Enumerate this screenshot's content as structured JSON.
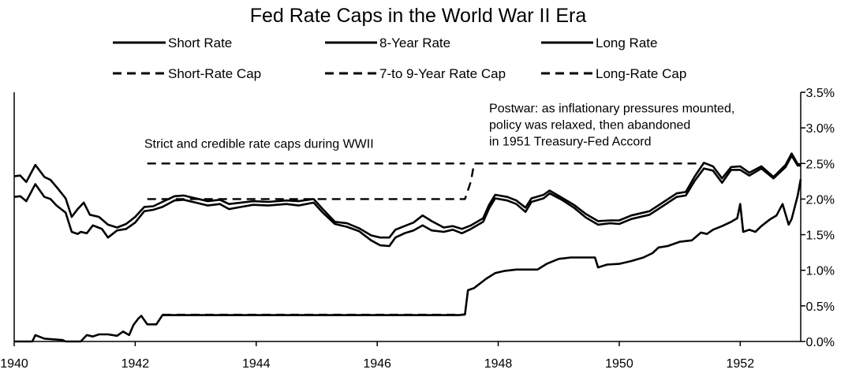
{
  "chart_data": {
    "type": "line",
    "title": "Fed Rate Caps in the World War II Era",
    "xlabel": "",
    "ylabel": "",
    "xlim": [
      1940,
      1953
    ],
    "ylim": [
      0,
      0.035
    ],
    "x_ticks": [
      1940,
      1942,
      1944,
      1946,
      1948,
      1950,
      1952
    ],
    "x_tick_labels": [
      "1940",
      "1942",
      "1944",
      "1946",
      "1948",
      "1950",
      "1952"
    ],
    "y_ticks": [
      0,
      0.005,
      0.01,
      0.015,
      0.02,
      0.025,
      0.03,
      0.035
    ],
    "y_tick_labels": [
      "0.0%",
      "0.5%",
      "1.0%",
      "1.5%",
      "2.0%",
      "2.5%",
      "3.0%",
      "3.5%"
    ],
    "y_axis_side": "right",
    "grid": false,
    "legend_position": "top",
    "annotations": [
      {
        "id": "wwii",
        "lines": [
          "Strict and credible rate caps during WWII"
        ],
        "x": 1942.15,
        "y": 0.0272
      },
      {
        "id": "postwar",
        "lines": [
          "Postwar: as inflationary pressures mounted,",
          "policy was relaxed, then abandoned",
          "in 1951 Treasury-Fed Accord"
        ],
        "x": 1947.85,
        "y": 0.0322
      }
    ],
    "series": [
      {
        "name": "Short Rate",
        "style": "solid",
        "points": [
          [
            1940.0,
            0.0
          ],
          [
            1940.3,
            0.0
          ],
          [
            1940.35,
            0.0009
          ],
          [
            1940.5,
            0.0004
          ],
          [
            1940.8,
            0.0002
          ],
          [
            1940.85,
            0.0
          ],
          [
            1941.1,
            0.0
          ],
          [
            1941.2,
            0.0009
          ],
          [
            1941.3,
            0.0007
          ],
          [
            1941.4,
            0.001
          ],
          [
            1941.55,
            0.001
          ],
          [
            1941.7,
            0.0008
          ],
          [
            1941.8,
            0.0014
          ],
          [
            1941.9,
            0.0009
          ],
          [
            1941.97,
            0.0023
          ],
          [
            1942.05,
            0.0032
          ],
          [
            1942.1,
            0.0036
          ],
          [
            1942.2,
            0.0024
          ],
          [
            1942.35,
            0.0024
          ],
          [
            1942.45,
            0.0037
          ],
          [
            1947.35,
            0.0037
          ],
          [
            1947.45,
            0.0038
          ],
          [
            1947.5,
            0.0072
          ],
          [
            1947.6,
            0.0075
          ],
          [
            1947.8,
            0.0088
          ],
          [
            1947.95,
            0.0096
          ],
          [
            1948.1,
            0.0099
          ],
          [
            1948.3,
            0.0101
          ],
          [
            1948.65,
            0.0101
          ],
          [
            1948.8,
            0.0109
          ],
          [
            1949.0,
            0.0116
          ],
          [
            1949.2,
            0.0118
          ],
          [
            1949.6,
            0.0118
          ],
          [
            1949.65,
            0.0104
          ],
          [
            1949.8,
            0.0108
          ],
          [
            1950.0,
            0.0109
          ],
          [
            1950.2,
            0.0113
          ],
          [
            1950.4,
            0.0118
          ],
          [
            1950.55,
            0.0124
          ],
          [
            1950.65,
            0.0132
          ],
          [
            1950.8,
            0.0134
          ],
          [
            1951.0,
            0.014
          ],
          [
            1951.2,
            0.0142
          ],
          [
            1951.35,
            0.0153
          ],
          [
            1951.45,
            0.0151
          ],
          [
            1951.55,
            0.0157
          ],
          [
            1951.7,
            0.0162
          ],
          [
            1951.85,
            0.0168
          ],
          [
            1951.95,
            0.0173
          ],
          [
            1952.0,
            0.0193
          ],
          [
            1952.05,
            0.0154
          ],
          [
            1952.15,
            0.0157
          ],
          [
            1952.25,
            0.0154
          ],
          [
            1952.35,
            0.0162
          ],
          [
            1952.5,
            0.0172
          ],
          [
            1952.6,
            0.0177
          ],
          [
            1952.7,
            0.0193
          ],
          [
            1952.8,
            0.0164
          ],
          [
            1952.85,
            0.0172
          ],
          [
            1952.95,
            0.0205
          ],
          [
            1953.0,
            0.0228
          ]
        ]
      },
      {
        "name": "8-Year Rate",
        "style": "solid",
        "points": [
          [
            1940.0,
            0.0203
          ],
          [
            1940.1,
            0.0204
          ],
          [
            1940.2,
            0.0197
          ],
          [
            1940.35,
            0.0221
          ],
          [
            1940.5,
            0.0203
          ],
          [
            1940.6,
            0.02
          ],
          [
            1940.7,
            0.0191
          ],
          [
            1940.85,
            0.0181
          ],
          [
            1940.95,
            0.0154
          ],
          [
            1941.05,
            0.0151
          ],
          [
            1941.1,
            0.0154
          ],
          [
            1941.2,
            0.0152
          ],
          [
            1941.3,
            0.0163
          ],
          [
            1941.45,
            0.0158
          ],
          [
            1941.55,
            0.0146
          ],
          [
            1941.7,
            0.0156
          ],
          [
            1941.85,
            0.0158
          ],
          [
            1942.0,
            0.0167
          ],
          [
            1942.15,
            0.0183
          ],
          [
            1942.3,
            0.0185
          ],
          [
            1942.45,
            0.0189
          ],
          [
            1942.65,
            0.0198
          ],
          [
            1942.8,
            0.0199
          ],
          [
            1943.0,
            0.0195
          ],
          [
            1943.2,
            0.0191
          ],
          [
            1943.4,
            0.0193
          ],
          [
            1943.55,
            0.0186
          ],
          [
            1943.75,
            0.0189
          ],
          [
            1943.95,
            0.0192
          ],
          [
            1944.2,
            0.0191
          ],
          [
            1944.5,
            0.0193
          ],
          [
            1944.7,
            0.0191
          ],
          [
            1944.95,
            0.0195
          ],
          [
            1945.1,
            0.0181
          ],
          [
            1945.3,
            0.0165
          ],
          [
            1945.5,
            0.0161
          ],
          [
            1945.7,
            0.0155
          ],
          [
            1945.9,
            0.0142
          ],
          [
            1946.05,
            0.0135
          ],
          [
            1946.2,
            0.0134
          ],
          [
            1946.3,
            0.0146
          ],
          [
            1946.45,
            0.0152
          ],
          [
            1946.6,
            0.0156
          ],
          [
            1946.75,
            0.0163
          ],
          [
            1946.9,
            0.0156
          ],
          [
            1947.1,
            0.0154
          ],
          [
            1947.25,
            0.0157
          ],
          [
            1947.4,
            0.0152
          ],
          [
            1947.55,
            0.0158
          ],
          [
            1947.75,
            0.0168
          ],
          [
            1947.85,
            0.0187
          ],
          [
            1947.95,
            0.0201
          ],
          [
            1948.15,
            0.0198
          ],
          [
            1948.3,
            0.0193
          ],
          [
            1948.45,
            0.0182
          ],
          [
            1948.55,
            0.0196
          ],
          [
            1948.75,
            0.0201
          ],
          [
            1948.85,
            0.0208
          ],
          [
            1949.05,
            0.0199
          ],
          [
            1949.25,
            0.0188
          ],
          [
            1949.45,
            0.0174
          ],
          [
            1949.65,
            0.0164
          ],
          [
            1949.85,
            0.0166
          ],
          [
            1950.0,
            0.0165
          ],
          [
            1950.2,
            0.0172
          ],
          [
            1950.5,
            0.0178
          ],
          [
            1950.7,
            0.0189
          ],
          [
            1950.95,
            0.0203
          ],
          [
            1951.1,
            0.0205
          ],
          [
            1951.25,
            0.0226
          ],
          [
            1951.4,
            0.0243
          ],
          [
            1951.55,
            0.024
          ],
          [
            1951.7,
            0.0223
          ],
          [
            1951.85,
            0.0241
          ],
          [
            1952.0,
            0.0241
          ],
          [
            1952.15,
            0.0233
          ],
          [
            1952.35,
            0.0243
          ],
          [
            1952.55,
            0.0229
          ],
          [
            1952.75,
            0.0245
          ],
          [
            1952.85,
            0.0261
          ],
          [
            1952.95,
            0.0247
          ],
          [
            1953.0,
            0.0247
          ]
        ]
      },
      {
        "name": "Long Rate",
        "style": "solid",
        "points": [
          [
            1940.0,
            0.0232
          ],
          [
            1940.1,
            0.0233
          ],
          [
            1940.2,
            0.0224
          ],
          [
            1940.35,
            0.0248
          ],
          [
            1940.5,
            0.0231
          ],
          [
            1940.6,
            0.0227
          ],
          [
            1940.7,
            0.0217
          ],
          [
            1940.85,
            0.0201
          ],
          [
            1940.95,
            0.0175
          ],
          [
            1941.05,
            0.0186
          ],
          [
            1941.15,
            0.0195
          ],
          [
            1941.25,
            0.0178
          ],
          [
            1941.4,
            0.0175
          ],
          [
            1941.55,
            0.0164
          ],
          [
            1941.7,
            0.016
          ],
          [
            1941.85,
            0.0165
          ],
          [
            1942.0,
            0.0175
          ],
          [
            1942.15,
            0.0189
          ],
          [
            1942.3,
            0.019
          ],
          [
            1942.45,
            0.0196
          ],
          [
            1942.65,
            0.0204
          ],
          [
            1942.8,
            0.0205
          ],
          [
            1943.0,
            0.0201
          ],
          [
            1943.2,
            0.0197
          ],
          [
            1943.4,
            0.0199
          ],
          [
            1943.55,
            0.0193
          ],
          [
            1943.75,
            0.0195
          ],
          [
            1943.95,
            0.0197
          ],
          [
            1944.2,
            0.0196
          ],
          [
            1944.5,
            0.0198
          ],
          [
            1944.7,
            0.0197
          ],
          [
            1944.95,
            0.02
          ],
          [
            1945.1,
            0.0186
          ],
          [
            1945.3,
            0.0168
          ],
          [
            1945.5,
            0.0166
          ],
          [
            1945.7,
            0.0159
          ],
          [
            1945.9,
            0.0149
          ],
          [
            1946.05,
            0.0146
          ],
          [
            1946.2,
            0.0146
          ],
          [
            1946.3,
            0.0157
          ],
          [
            1946.45,
            0.0162
          ],
          [
            1946.6,
            0.0167
          ],
          [
            1946.75,
            0.0177
          ],
          [
            1946.9,
            0.0169
          ],
          [
            1947.1,
            0.016
          ],
          [
            1947.25,
            0.0162
          ],
          [
            1947.4,
            0.0158
          ],
          [
            1947.55,
            0.0163
          ],
          [
            1947.75,
            0.0173
          ],
          [
            1947.85,
            0.0192
          ],
          [
            1947.95,
            0.0206
          ],
          [
            1948.15,
            0.0203
          ],
          [
            1948.3,
            0.0198
          ],
          [
            1948.45,
            0.0188
          ],
          [
            1948.55,
            0.0201
          ],
          [
            1948.75,
            0.0206
          ],
          [
            1948.85,
            0.0212
          ],
          [
            1949.05,
            0.0202
          ],
          [
            1949.25,
            0.0192
          ],
          [
            1949.45,
            0.0179
          ],
          [
            1949.65,
            0.0169
          ],
          [
            1949.85,
            0.017
          ],
          [
            1950.0,
            0.017
          ],
          [
            1950.2,
            0.0177
          ],
          [
            1950.5,
            0.0183
          ],
          [
            1950.7,
            0.0194
          ],
          [
            1950.95,
            0.0208
          ],
          [
            1951.1,
            0.021
          ],
          [
            1951.25,
            0.0232
          ],
          [
            1951.4,
            0.0251
          ],
          [
            1951.55,
            0.0246
          ],
          [
            1951.7,
            0.0229
          ],
          [
            1951.85,
            0.0245
          ],
          [
            1952.0,
            0.0246
          ],
          [
            1952.15,
            0.0237
          ],
          [
            1952.35,
            0.0246
          ],
          [
            1952.55,
            0.0231
          ],
          [
            1952.75,
            0.0248
          ],
          [
            1952.85,
            0.0264
          ],
          [
            1952.95,
            0.0249
          ],
          [
            1953.0,
            0.0249
          ]
        ]
      },
      {
        "name": "Short-Rate Cap",
        "style": "dashed",
        "points": [
          [
            1942.45,
            0.00375
          ],
          [
            1947.45,
            0.00375
          ]
        ]
      },
      {
        "name": "7-to 9-Year Rate Cap",
        "style": "dashed",
        "points": [
          [
            1942.2,
            0.02
          ],
          [
            1947.45,
            0.02
          ],
          [
            1947.55,
            0.0225
          ],
          [
            1947.6,
            0.025
          ],
          [
            1951.3,
            0.025
          ]
        ]
      },
      {
        "name": "Long-Rate Cap",
        "style": "dashed",
        "points": [
          [
            1942.2,
            0.025
          ],
          [
            1947.45,
            0.025
          ]
        ]
      }
    ]
  }
}
